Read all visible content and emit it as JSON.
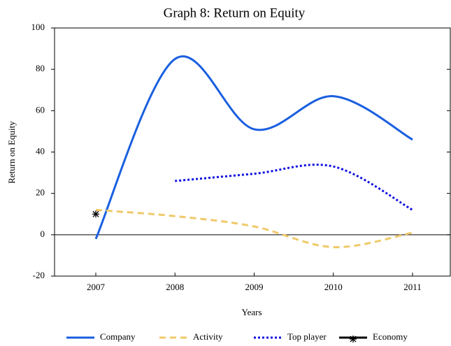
{
  "chart_data": {
    "type": "line",
    "title": "Graph 8: Return on Equity",
    "x_label": "Years",
    "y_label": "Return on Equity",
    "categories": [
      "2007",
      "2008",
      "2009",
      "2010",
      "2011"
    ],
    "series": [
      {
        "name": "Company",
        "color": "#1a5fe0",
        "style": "solid",
        "values": [
          -2,
          85,
          51,
          67,
          46
        ]
      },
      {
        "name": "Activity",
        "color": "#f0c96a",
        "style": "dashed",
        "values": [
          12,
          9,
          4,
          -6,
          1
        ]
      },
      {
        "name": "Top player",
        "color": "#1010e0",
        "style": "dotted",
        "values": [
          null,
          26,
          29.5,
          33,
          12
        ]
      },
      {
        "name": "Economy",
        "color": "#000000",
        "style": "marker",
        "values": [
          10,
          null,
          null,
          null,
          null
        ]
      }
    ],
    "ylim": [
      -20,
      100
    ],
    "yticks": [
      -20,
      0,
      20,
      40,
      60,
      80,
      100
    ],
    "legend": "bottom"
  }
}
